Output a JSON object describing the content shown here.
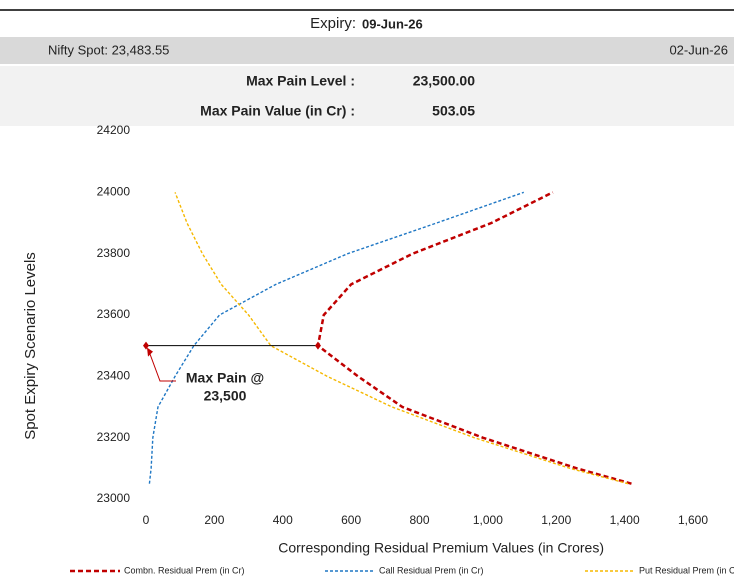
{
  "header": {
    "expiry_label": "Expiry:",
    "expiry": "09-Jun-26",
    "spot": "Nifty Spot: 23,483.55",
    "date": "02-Jun-26",
    "info": [
      {
        "label": "Max Pain Level :",
        "value": "23,500.00"
      },
      {
        "label": "Max Pain Value (in Cr) :",
        "value": "503.05"
      }
    ]
  },
  "chart_data": {
    "type": "line",
    "xlabel": "Corresponding Residual Premium Values (in Crores)",
    "ylabel": "Spot Expiry  Scenario Levels",
    "y": [
      23050,
      23100,
      23200,
      23300,
      23400,
      23500,
      23600,
      23700,
      23800,
      23900,
      24000
    ],
    "series": [
      {
        "name": "Combn. Residual Prem (in Cr)",
        "color": "#c00000",
        "values": [
          1420,
          1260,
          985,
          750,
          620,
          503.05,
          520,
          600,
          780,
          1010,
          1190
        ]
      },
      {
        "name": "Call Residual Prem (in Cr)",
        "color": "#1f77c4",
        "values": [
          10,
          15,
          20,
          35,
          85,
          140,
          215,
          380,
          590,
          850,
          1105
        ]
      },
      {
        "name": "Put Residual Prem (in Cr)",
        "color": "#f5b800",
        "values": [
          1410,
          1240,
          960,
          720,
          530,
          365,
          300,
          220,
          165,
          120,
          85
        ]
      }
    ],
    "marker": {
      "x": 503.05,
      "y": 23500
    },
    "annotation": [
      "Max Pain @",
      "23,500"
    ],
    "xlim": [
      0,
      1600
    ],
    "xticks": [
      0,
      200,
      400,
      600,
      800,
      {
        "value": 1000,
        "label": "1,000"
      },
      {
        "value": 1200,
        "label": "1,200"
      },
      {
        "value": 1400,
        "label": "1,400"
      },
      {
        "value": 1600,
        "label": "1,600"
      }
    ],
    "ylim": [
      23000,
      24200
    ],
    "yticks": [
      23000,
      23200,
      23400,
      23600,
      23800,
      24000,
      24200
    ]
  }
}
